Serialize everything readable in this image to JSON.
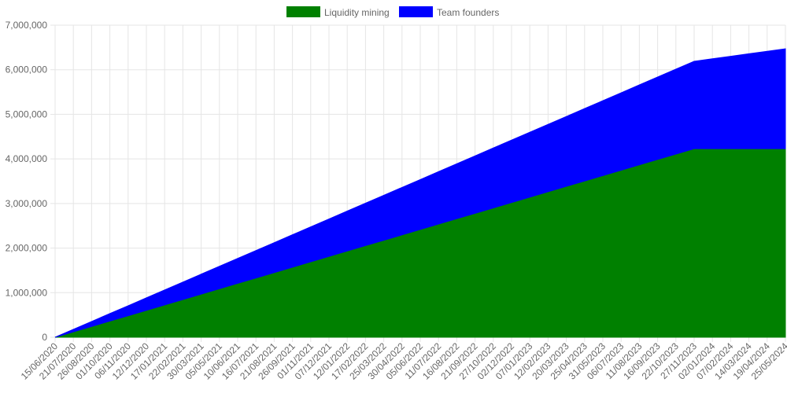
{
  "chart_data": {
    "type": "stacked_area",
    "categories": [
      "15/06/2020",
      "21/07/2020",
      "26/08/2020",
      "01/10/2020",
      "06/11/2020",
      "12/12/2020",
      "17/01/2021",
      "22/02/2021",
      "30/03/2021",
      "05/05/2021",
      "10/06/2021",
      "16/07/2021",
      "21/08/2021",
      "26/09/2021",
      "01/11/2021",
      "07/12/2021",
      "12/01/2022",
      "17/02/2022",
      "25/03/2022",
      "30/04/2022",
      "05/06/2022",
      "11/07/2022",
      "16/08/2022",
      "21/09/2022",
      "27/10/2022",
      "02/12/2022",
      "07/01/2023",
      "12/02/2023",
      "20/03/2023",
      "25/04/2023",
      "31/05/2023",
      "06/07/2023",
      "11/08/2023",
      "16/09/2023",
      "22/10/2023",
      "27/11/2023",
      "02/01/2024",
      "07/02/2024",
      "14/03/2024",
      "19/04/2024",
      "25/05/2024"
    ],
    "series": [
      {
        "name": "Liquidity mining",
        "color": "#008000",
        "values": [
          0,
          121000,
          242000,
          363000,
          483000,
          604000,
          725000,
          846000,
          967000,
          1088000,
          1209000,
          1329000,
          1450000,
          1571000,
          1692000,
          1813000,
          1934000,
          2055000,
          2175000,
          2296000,
          2417000,
          2538000,
          2659000,
          2780000,
          2901000,
          3021000,
          3142000,
          3263000,
          3384000,
          3505000,
          3626000,
          3747000,
          3868000,
          3988000,
          4109000,
          4230000,
          4230000,
          4230000,
          4230000,
          4230000,
          4230000
        ]
      },
      {
        "name": "Team founders",
        "color": "#0000ff",
        "values": [
          0,
          56000,
          112000,
          168000,
          224000,
          280000,
          336000,
          392000,
          448000,
          504000,
          560000,
          616000,
          672000,
          728000,
          784000,
          840000,
          896000,
          952000,
          1008000,
          1064000,
          1120000,
          1176000,
          1232000,
          1288000,
          1344000,
          1400000,
          1456000,
          1512000,
          1568000,
          1624000,
          1680000,
          1736000,
          1792000,
          1848000,
          1904000,
          1960000,
          2016000,
          2072000,
          2128000,
          2184000,
          2240000
        ]
      }
    ],
    "ylim": [
      0,
      7000000
    ],
    "yticks": [
      0,
      {
        "value": 1000000,
        "label": "1,000,000"
      },
      {
        "value": 2000000,
        "label": "2,000,000"
      },
      {
        "value": 3000000,
        "label": "3,000,000"
      },
      {
        "value": 4000000,
        "label": "4,000,000"
      },
      {
        "value": 5000000,
        "label": "5,000,000"
      },
      {
        "value": 6000000,
        "label": "6,000,000"
      },
      {
        "value": 7000000,
        "label": "7,000,000"
      }
    ],
    "grid": true,
    "legend": "top"
  }
}
